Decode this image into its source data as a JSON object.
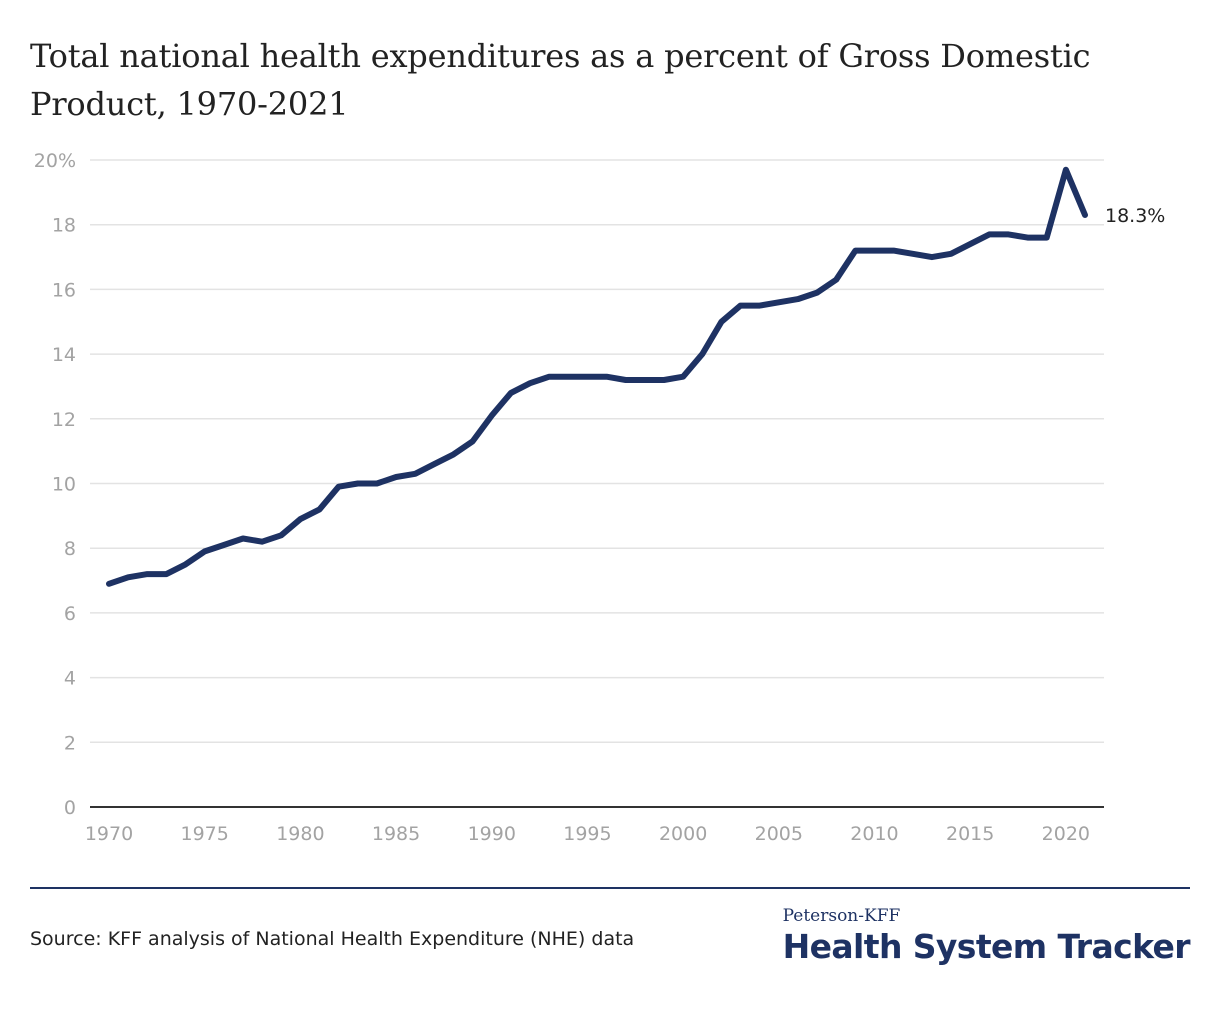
{
  "chart_data": {
    "type": "line",
    "title": "Total national health expenditures as a percent of Gross Domestic Product, 1970-2021",
    "xlabel": "",
    "ylabel": "",
    "xlim": [
      1970,
      2021
    ],
    "ylim": [
      0,
      20
    ],
    "yticks": [
      0,
      2,
      4,
      6,
      8,
      10,
      12,
      14,
      16,
      18,
      20
    ],
    "ytick_labels": [
      "0",
      "2",
      "4",
      "6",
      "8",
      "10",
      "12",
      "14",
      "16",
      "18",
      "20%"
    ],
    "xticks": [
      1970,
      1975,
      1980,
      1985,
      1990,
      1995,
      2000,
      2005,
      2010,
      2015,
      2020
    ],
    "xtick_labels": [
      "1970",
      "1975",
      "1980",
      "1985",
      "1990",
      "1995",
      "2000",
      "2005",
      "2010",
      "2015",
      "2020"
    ],
    "grid": true,
    "series": [
      {
        "name": "Total NHE as % of GDP",
        "color": "#1e3263",
        "x": [
          1970,
          1971,
          1972,
          1973,
          1974,
          1975,
          1976,
          1977,
          1978,
          1979,
          1980,
          1981,
          1982,
          1983,
          1984,
          1985,
          1986,
          1987,
          1988,
          1989,
          1990,
          1991,
          1992,
          1993,
          1994,
          1995,
          1996,
          1997,
          1998,
          1999,
          2000,
          2001,
          2002,
          2003,
          2004,
          2005,
          2006,
          2007,
          2008,
          2009,
          2010,
          2011,
          2012,
          2013,
          2014,
          2015,
          2016,
          2017,
          2018,
          2019,
          2020,
          2021
        ],
        "values": [
          6.9,
          7.1,
          7.2,
          7.2,
          7.5,
          7.9,
          8.1,
          8.3,
          8.2,
          8.4,
          8.9,
          9.2,
          9.9,
          10.0,
          10.0,
          10.2,
          10.3,
          10.6,
          10.9,
          11.3,
          12.1,
          12.8,
          13.1,
          13.3,
          13.3,
          13.3,
          13.3,
          13.2,
          13.2,
          13.2,
          13.3,
          14.0,
          15.0,
          15.5,
          15.5,
          15.6,
          15.7,
          15.9,
          16.3,
          17.2,
          17.2,
          17.2,
          17.1,
          17.0,
          17.1,
          17.4,
          17.7,
          17.7,
          17.6,
          17.6,
          19.7,
          18.3
        ]
      }
    ],
    "annotations": [
      {
        "x": 2021,
        "y": 18.3,
        "text": "18.3%"
      }
    ]
  },
  "footer": {
    "source": "Source: KFF analysis of National Health Expenditure (NHE) data",
    "brand_small": "Peterson-KFF",
    "brand_large": "Health System Tracker"
  },
  "colors": {
    "line": "#1e3263",
    "grid": "#e3e3e3",
    "axis": "#333333",
    "tick_text": "#a3a3a3"
  }
}
